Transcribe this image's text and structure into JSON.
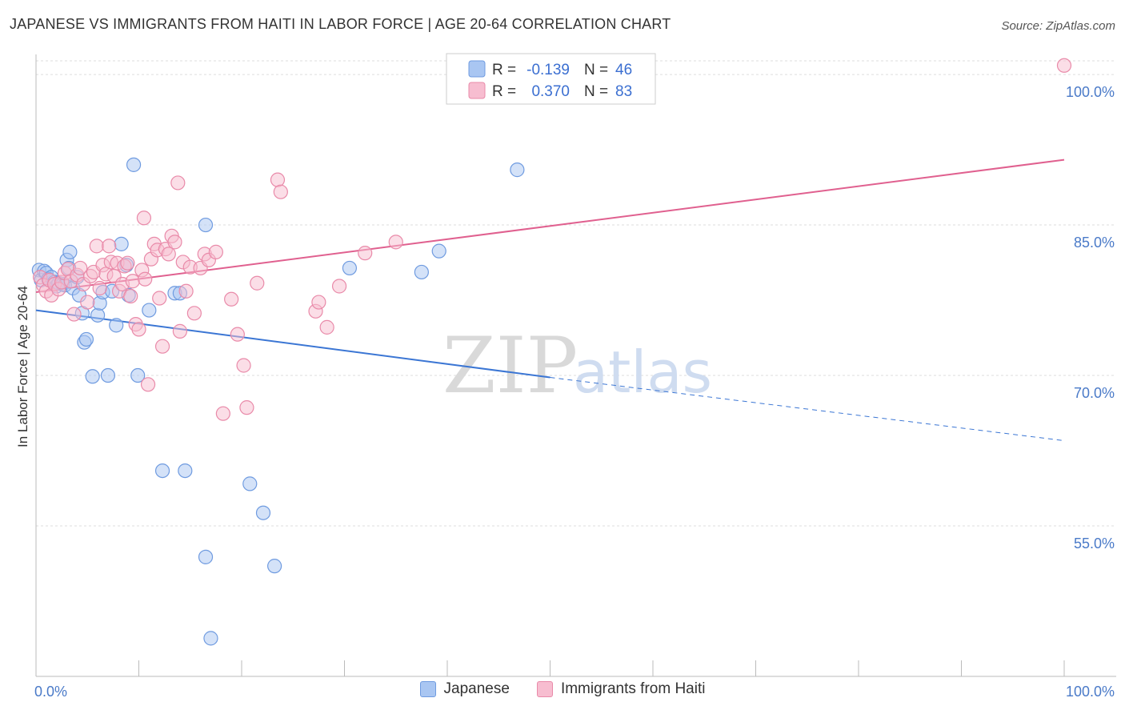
{
  "header": {
    "title": "JAPANESE VS IMMIGRANTS FROM HAITI IN LABOR FORCE | AGE 20-64 CORRELATION CHART",
    "source": "Source: ZipAtlas.com"
  },
  "watermark": {
    "zip": "ZIP",
    "atlas": "atlas"
  },
  "chart_data": {
    "type": "scatter",
    "ylabel": "In Labor Force | Age 20-64",
    "xlim": [
      0,
      100
    ],
    "ylim": [
      40,
      102
    ],
    "x_ticks": [
      "0.0%",
      "100.0%"
    ],
    "y_ticks": [
      {
        "value": 55,
        "label": "55.0%"
      },
      {
        "value": 70,
        "label": "70.0%"
      },
      {
        "value": 85,
        "label": "85.0%"
      },
      {
        "value": 100,
        "label": "100.0%"
      }
    ],
    "grid": "horizontal-dashed",
    "legend_stats": [
      {
        "r_label": "R = ",
        "r_value": "-0.139",
        "n_label": "N = ",
        "n_value": "46",
        "color_fill": "#a9c6f2",
        "color_stroke": "#6f9be0"
      },
      {
        "r_label": "R = ",
        "r_value": "0.370",
        "n_label": "N = ",
        "n_value": "83",
        "color_fill": "#f7bdd0",
        "color_stroke": "#e98aa9"
      }
    ],
    "series": [
      {
        "name": "Japanese",
        "fill": "#a9c6f2",
        "stroke": "#6f9be0",
        "line_color": "#3b76d4",
        "trend": {
          "x0": 0,
          "y0": 76.5,
          "x1": 50,
          "y1": 69.8,
          "dash_to_x": 100,
          "dash_to_y": 63.5
        },
        "points": [
          [
            0.3,
            80.5
          ],
          [
            0.5,
            79.5
          ],
          [
            0.8,
            80.4
          ],
          [
            1,
            80.2
          ],
          [
            1.2,
            79.6
          ],
          [
            1.5,
            79.8
          ],
          [
            1.8,
            79.3
          ],
          [
            2,
            78.9
          ],
          [
            2.2,
            79.2
          ],
          [
            2.6,
            79.1
          ],
          [
            2.8,
            79.0
          ],
          [
            3,
            81.5
          ],
          [
            3.2,
            80.7
          ],
          [
            3.3,
            82.3
          ],
          [
            3.6,
            78.7
          ],
          [
            4,
            79.8
          ],
          [
            4.2,
            78.0
          ],
          [
            4.5,
            76.2
          ],
          [
            4.7,
            73.3
          ],
          [
            4.9,
            73.6
          ],
          [
            5.5,
            69.9
          ],
          [
            6,
            76.0
          ],
          [
            6.2,
            77.2
          ],
          [
            6.5,
            78.3
          ],
          [
            7,
            70.0
          ],
          [
            7.4,
            78.4
          ],
          [
            7.8,
            75.0
          ],
          [
            8.3,
            83.1
          ],
          [
            8.8,
            81.0
          ],
          [
            9,
            78.0
          ],
          [
            9.5,
            91.0
          ],
          [
            9.9,
            70.0
          ],
          [
            11,
            76.5
          ],
          [
            12.3,
            60.5
          ],
          [
            13.5,
            78.2
          ],
          [
            14,
            78.2
          ],
          [
            14.5,
            60.5
          ],
          [
            16.5,
            85.0
          ],
          [
            16.5,
            51.9
          ],
          [
            17,
            43.8
          ],
          [
            20.8,
            59.2
          ],
          [
            22.1,
            56.3
          ],
          [
            23.2,
            51.0
          ],
          [
            30.5,
            80.7
          ],
          [
            37.5,
            80.3
          ],
          [
            39.2,
            82.4
          ],
          [
            46.8,
            90.5
          ]
        ]
      },
      {
        "name": "Immigrants from Haiti",
        "fill": "#f7bdd0",
        "stroke": "#e98aa9",
        "line_color": "#e0608f",
        "trend": {
          "x0": 0,
          "y0": 78.3,
          "x1": 100,
          "y1": 91.5
        },
        "points": [
          [
            0.4,
            79.8
          ],
          [
            0.7,
            79.0
          ],
          [
            1,
            78.4
          ],
          [
            1.3,
            79.5
          ],
          [
            1.5,
            78.0
          ],
          [
            1.8,
            79.1
          ],
          [
            2.2,
            78.6
          ],
          [
            2.5,
            79.3
          ],
          [
            2.8,
            80.2
          ],
          [
            3.1,
            80.6
          ],
          [
            3.4,
            79.4
          ],
          [
            3.7,
            76.1
          ],
          [
            4,
            80.0
          ],
          [
            4.3,
            80.7
          ],
          [
            4.6,
            79.1
          ],
          [
            5,
            77.3
          ],
          [
            5.3,
            79.9
          ],
          [
            5.6,
            80.3
          ],
          [
            5.9,
            82.9
          ],
          [
            6.2,
            78.7
          ],
          [
            6.5,
            81.0
          ],
          [
            6.8,
            80.1
          ],
          [
            7.1,
            82.9
          ],
          [
            7.3,
            81.3
          ],
          [
            7.6,
            79.9
          ],
          [
            7.9,
            81.2
          ],
          [
            8.1,
            78.4
          ],
          [
            8.4,
            79.1
          ],
          [
            8.6,
            80.9
          ],
          [
            8.9,
            81.2
          ],
          [
            9.2,
            77.9
          ],
          [
            9.4,
            79.4
          ],
          [
            9.7,
            75.1
          ],
          [
            10,
            74.6
          ],
          [
            10.3,
            80.5
          ],
          [
            10.6,
            79.6
          ],
          [
            10.9,
            69.1
          ],
          [
            10.5,
            85.7
          ],
          [
            11.2,
            81.6
          ],
          [
            11.5,
            83.1
          ],
          [
            11.8,
            82.5
          ],
          [
            12,
            77.7
          ],
          [
            12.3,
            72.9
          ],
          [
            12.6,
            82.6
          ],
          [
            12.9,
            82.1
          ],
          [
            13.2,
            83.9
          ],
          [
            13.5,
            83.3
          ],
          [
            13.8,
            89.2
          ],
          [
            14,
            74.4
          ],
          [
            14.3,
            81.3
          ],
          [
            14.6,
            78.4
          ],
          [
            15,
            80.8
          ],
          [
            15.4,
            76.2
          ],
          [
            16,
            80.7
          ],
          [
            16.4,
            82.1
          ],
          [
            16.8,
            81.5
          ],
          [
            17.5,
            82.3
          ],
          [
            18.2,
            66.2
          ],
          [
            19,
            77.6
          ],
          [
            19.6,
            74.1
          ],
          [
            20.2,
            71.0
          ],
          [
            20.5,
            66.8
          ],
          [
            21.5,
            79.2
          ],
          [
            23.5,
            89.5
          ],
          [
            23.8,
            88.3
          ],
          [
            27.2,
            76.4
          ],
          [
            27.5,
            77.3
          ],
          [
            28.3,
            74.8
          ],
          [
            29.5,
            78.9
          ],
          [
            32,
            82.2
          ],
          [
            35,
            83.3
          ],
          [
            100,
            100.9
          ]
        ]
      }
    ]
  }
}
